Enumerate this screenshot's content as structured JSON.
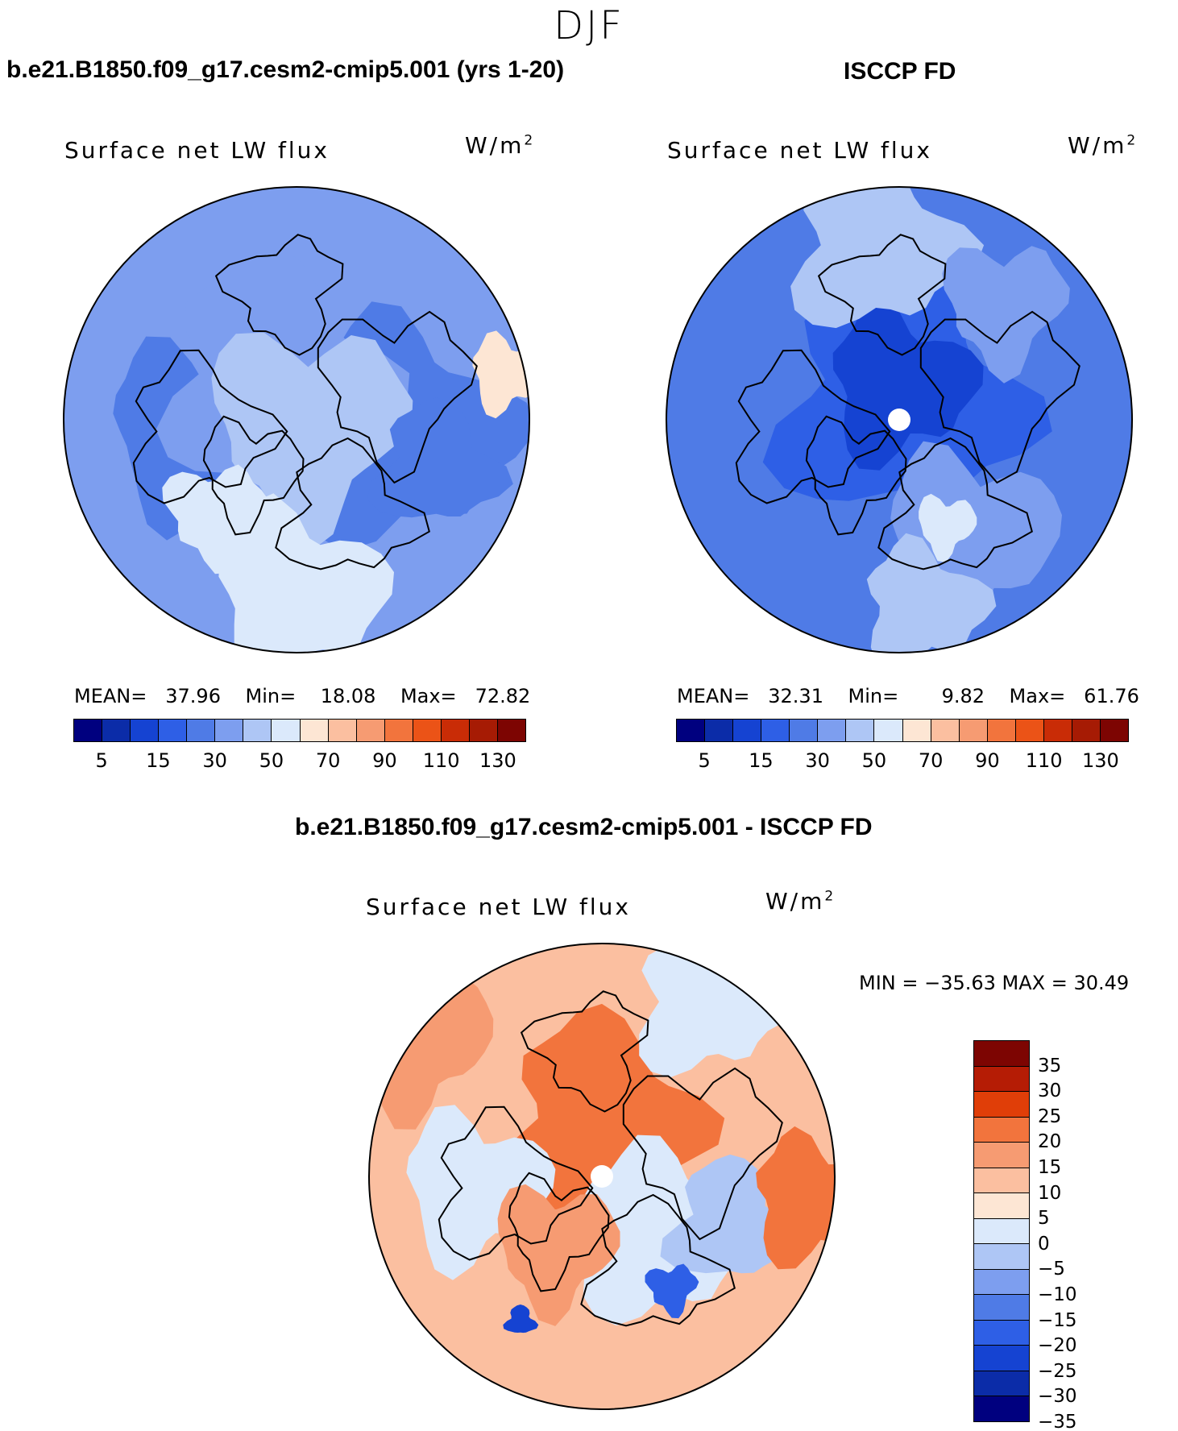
{
  "season": "DJF",
  "panels": [
    {
      "title": "b.e21.B1850.f09_g17.cesm2-cmip5.001 (yrs 1-20)",
      "variable": "Surface net LW flux",
      "units": "W/m",
      "units_sup": "2",
      "stats": {
        "mean_label": "MEAN=",
        "mean": "37.96",
        "min_label": "Min=",
        "min": "18.08",
        "max_label": "Max=",
        "max": "72.82"
      }
    },
    {
      "title": "ISCCP FD",
      "variable": "Surface net LW flux",
      "units": "W/m",
      "units_sup": "2",
      "stats": {
        "mean_label": "MEAN=",
        "mean": "32.31",
        "min_label": "Min=",
        "min": "9.82",
        "max_label": "Max=",
        "max": "61.76"
      }
    },
    {
      "title": "b.e21.B1850.f09_g17.cesm2-cmip5.001 - ISCCP FD",
      "variable": "Surface net LW flux",
      "units": "W/m",
      "units_sup": "2",
      "minmax": "MIN = −35.63 MAX =   30.49"
    }
  ],
  "colorbar_abs": {
    "colors": [
      "#00007f",
      "#0b2ca8",
      "#1543d2",
      "#2e5fe6",
      "#4f7be6",
      "#7d9eef",
      "#aec6f5",
      "#dbe9fb",
      "#fde6d4",
      "#fbbfa0",
      "#f69b72",
      "#f2743d",
      "#eb5317",
      "#c92c06",
      "#a61b04",
      "#7d0502"
    ],
    "tick_labels": [
      "5",
      "15",
      "30",
      "50",
      "70",
      "90",
      "110",
      "130"
    ]
  },
  "colorbar_diff": {
    "colors": [
      "#7d0502",
      "#b51c05",
      "#e03e08",
      "#f2743d",
      "#f69b72",
      "#fbbfa0",
      "#fde6d4",
      "#dbe9fb",
      "#aec6f5",
      "#7d9eef",
      "#4f7be6",
      "#2e5fe6",
      "#1543d2",
      "#0b2ca8",
      "#00007f"
    ],
    "tick_labels": [
      "35",
      "30",
      "25",
      "20",
      "15",
      "10",
      "5",
      "0",
      "−5",
      "−10",
      "−15",
      "−20",
      "−25",
      "−30",
      "−35"
    ]
  },
  "chart_data": [
    {
      "type": "heatmap",
      "projection": "north polar stereographic",
      "title": "b.e21.B1850.f09_g17.cesm2-cmip5.001 (yrs 1-20)",
      "field": "Surface net LW flux",
      "units": "W/m2",
      "levels": [
        5,
        10,
        15,
        20,
        30,
        40,
        50,
        60,
        70,
        80,
        90,
        100,
        110,
        120,
        130
      ],
      "mean": 37.96,
      "min": 18.08,
      "max": 72.82
    },
    {
      "type": "heatmap",
      "projection": "north polar stereographic",
      "title": "ISCCP FD",
      "field": "Surface net LW flux",
      "units": "W/m2",
      "levels": [
        5,
        10,
        15,
        20,
        30,
        40,
        50,
        60,
        70,
        80,
        90,
        100,
        110,
        120,
        130
      ],
      "mean": 32.31,
      "min": 9.82,
      "max": 61.76
    },
    {
      "type": "heatmap",
      "projection": "north polar stereographic",
      "title": "b.e21.B1850.f09_g17.cesm2-cmip5.001 - ISCCP FD",
      "field": "Surface net LW flux",
      "units": "W/m2",
      "levels": [
        -35,
        -30,
        -25,
        -20,
        -15,
        -10,
        -5,
        0,
        5,
        10,
        15,
        20,
        25,
        30,
        35
      ],
      "min": -35.63,
      "max": 30.49
    }
  ]
}
